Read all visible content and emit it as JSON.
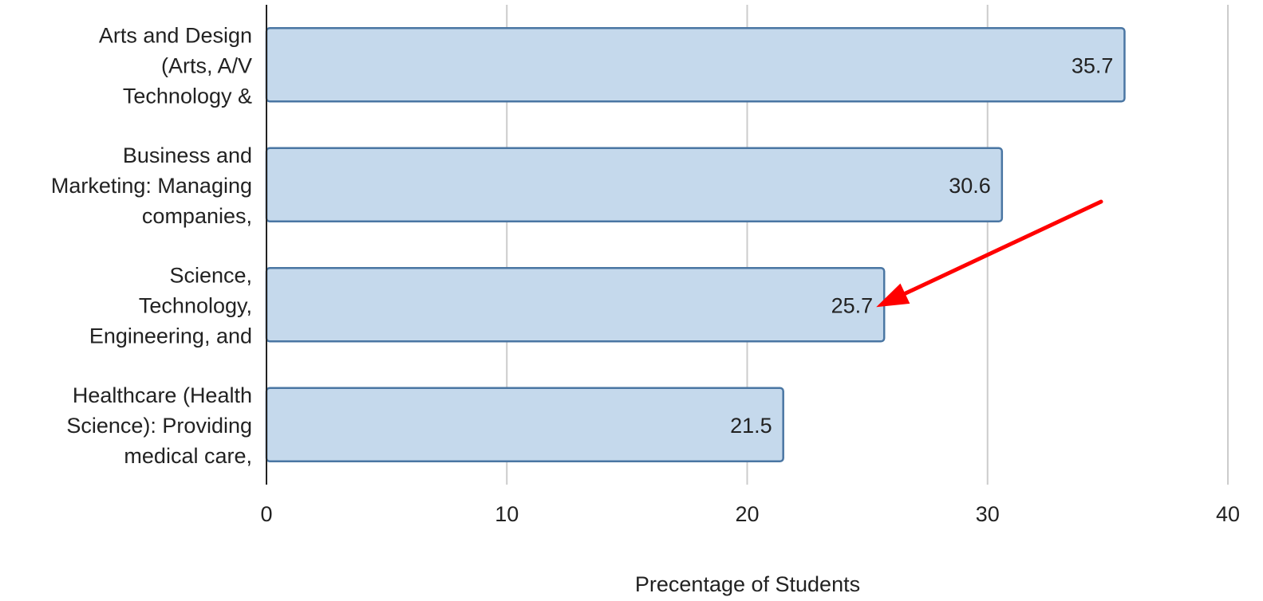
{
  "chart_data": {
    "type": "bar",
    "orientation": "horizontal",
    "categories": [
      [
        "Arts and Design",
        "(Arts, A/V",
        "Technology &"
      ],
      [
        "Business and",
        "Marketing: Managing",
        "companies,"
      ],
      [
        "Science,",
        "Technology,",
        "Engineering, and"
      ],
      [
        "Healthcare (Health",
        "Science): Providing",
        "medical care,"
      ]
    ],
    "values": [
      35.7,
      30.6,
      25.7,
      21.5
    ],
    "data_labels": [
      "35.7",
      "30.6",
      "25.7",
      "21.5"
    ],
    "title": "",
    "xlabel": "Precentage of Students",
    "ylabel": "",
    "xlim": [
      0,
      40
    ],
    "x_ticks": [
      "0",
      "10",
      "20",
      "30",
      "40"
    ],
    "grid": "vertical",
    "legend": "none",
    "annotations": [
      {
        "type": "arrow",
        "target_category_index": 2,
        "color": "#ff0000"
      }
    ]
  },
  "colors": {
    "bar_fill": "#c5d9ec",
    "bar_stroke": "#4a76a3",
    "grid": "#cccccc",
    "axis": "#222222",
    "arrow": "#ff0000"
  }
}
